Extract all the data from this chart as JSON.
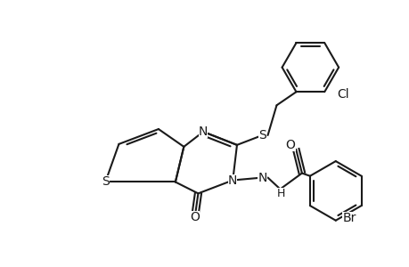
{
  "bg_color": "#ffffff",
  "line_color": "#1a1a1a",
  "line_width": 1.5,
  "font_size": 10,
  "figsize": [
    4.6,
    3.0
  ],
  "dpi": 100,
  "xlim": [
    0,
    8.5
  ],
  "ylim": [
    0,
    5.8
  ]
}
